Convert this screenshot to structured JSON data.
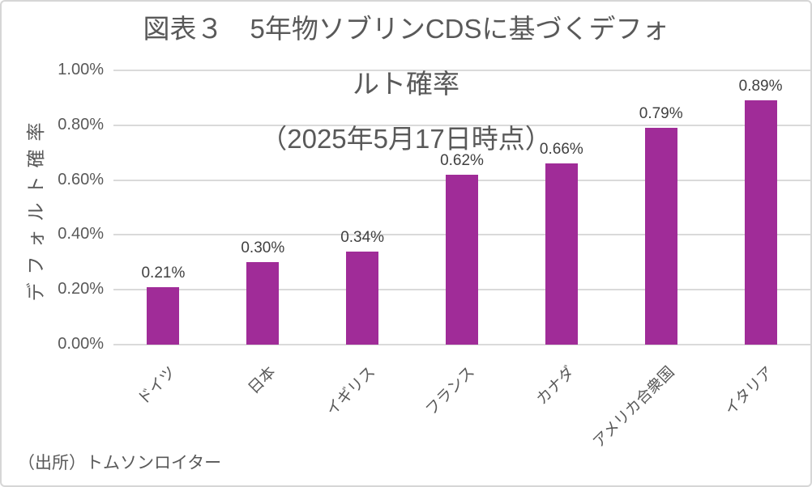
{
  "chart_data": {
    "type": "bar",
    "title": "図表３　5年物ソブリンCDSに基づくデフォルト確率（2025年5月17日時点）",
    "title_lines": {
      "line1": "図表３　5年物ソブリンCDSに基づくデフォ",
      "line2": "ルト確率",
      "line3": "（2025年5月17日時点）"
    },
    "categories": [
      "ドイツ",
      "日本",
      "イギリス",
      "フランス",
      "カナダ",
      "アメリカ合衆国",
      "イタリア"
    ],
    "values": [
      0.21,
      0.3,
      0.34,
      0.62,
      0.66,
      0.79,
      0.89
    ],
    "data_labels": [
      "0.21%",
      "0.30%",
      "0.34%",
      "0.62%",
      "0.66%",
      "0.79%",
      "0.89%"
    ],
    "xlabel": "",
    "ylabel": "デフォルト確率",
    "y_ticks": [
      "0.00%",
      "0.20%",
      "0.40%",
      "0.60%",
      "0.80%",
      "1.00%"
    ],
    "ylim": [
      0,
      1.0
    ],
    "grid": true,
    "legend": "none",
    "bar_color": "#a02c98",
    "source_note": "（出所）トムソンロイター"
  },
  "colors": {
    "bar": "#a02c98",
    "title_text": "#595959",
    "axis_text": "#595959",
    "data_label_text": "#404040",
    "gridline": "#dadada",
    "border": "#d6d6d6",
    "background": "#ffffff"
  }
}
